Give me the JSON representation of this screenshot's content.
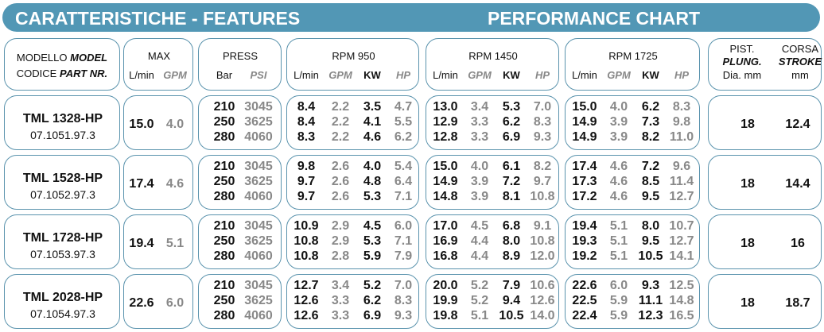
{
  "title_left": "CARATTERISTICHE - FEATURES",
  "title_right": "PERFORMANCE CHART",
  "headers": {
    "model_1": "MODELLO",
    "model_1i": "MODEL",
    "model_2": "CODICE",
    "model_2i": "PART NR.",
    "max": "MAX",
    "lmin": "L/min",
    "gpm": "GPM",
    "press": "PRESS",
    "bar": "Bar",
    "psi": "PSI",
    "rpm950": "RPM 950",
    "rpm1450": "RPM 1450",
    "rpm1725": "RPM 1725",
    "kw": "KW",
    "hp": "HP",
    "pist": "PIST.",
    "plung": "PLUNG.",
    "dia": "Dia. mm",
    "corsa": "CORSA",
    "stroke": "STROKE",
    "mm": "mm"
  },
  "accent": "#5297b5",
  "rows": [
    {
      "model": "TML 1328-HP",
      "code": "07.1051.97.3",
      "max_l": "15.0",
      "max_g": "4.0",
      "plunger": "18",
      "stroke": "12.4",
      "press": [
        [
          "210",
          "3045"
        ],
        [
          "250",
          "3625"
        ],
        [
          "280",
          "4060"
        ]
      ],
      "rpm950": [
        [
          "8.4",
          "2.2",
          "3.5",
          "4.7"
        ],
        [
          "8.4",
          "2.2",
          "4.1",
          "5.5"
        ],
        [
          "8.3",
          "2.2",
          "4.6",
          "6.2"
        ]
      ],
      "rpm1450": [
        [
          "13.0",
          "3.4",
          "5.3",
          "7.0"
        ],
        [
          "12.9",
          "3.3",
          "6.2",
          "8.3"
        ],
        [
          "12.8",
          "3.3",
          "6.9",
          "9.3"
        ]
      ],
      "rpm1725": [
        [
          "15.0",
          "4.0",
          "6.2",
          "8.3"
        ],
        [
          "14.9",
          "3.9",
          "7.3",
          "9.8"
        ],
        [
          "14.9",
          "3.9",
          "8.2",
          "11.0"
        ]
      ]
    },
    {
      "model": "TML 1528-HP",
      "code": "07.1052.97.3",
      "max_l": "17.4",
      "max_g": "4.6",
      "plunger": "18",
      "stroke": "14.4",
      "press": [
        [
          "210",
          "3045"
        ],
        [
          "250",
          "3625"
        ],
        [
          "280",
          "4060"
        ]
      ],
      "rpm950": [
        [
          "9.8",
          "2.6",
          "4.0",
          "5.4"
        ],
        [
          "9.7",
          "2.6",
          "4.8",
          "6.4"
        ],
        [
          "9.7",
          "2.6",
          "5.3",
          "7.1"
        ]
      ],
      "rpm1450": [
        [
          "15.0",
          "4.0",
          "6.1",
          "8.2"
        ],
        [
          "14.9",
          "3.9",
          "7.2",
          "9.7"
        ],
        [
          "14.8",
          "3.9",
          "8.1",
          "10.8"
        ]
      ],
      "rpm1725": [
        [
          "17.4",
          "4.6",
          "7.2",
          "9.6"
        ],
        [
          "17.3",
          "4.6",
          "8.5",
          "11.4"
        ],
        [
          "17.2",
          "4.6",
          "9.5",
          "12.7"
        ]
      ]
    },
    {
      "model": "TML 1728-HP",
      "code": "07.1053.97.3",
      "max_l": "19.4",
      "max_g": "5.1",
      "plunger": "18",
      "stroke": "16",
      "press": [
        [
          "210",
          "3045"
        ],
        [
          "250",
          "3625"
        ],
        [
          "280",
          "4060"
        ]
      ],
      "rpm950": [
        [
          "10.9",
          "2.9",
          "4.5",
          "6.0"
        ],
        [
          "10.8",
          "2.9",
          "5.3",
          "7.1"
        ],
        [
          "10.8",
          "2.8",
          "5.9",
          "7.9"
        ]
      ],
      "rpm1450": [
        [
          "17.0",
          "4.5",
          "6.8",
          "9.1"
        ],
        [
          "16.9",
          "4.4",
          "8.0",
          "10.8"
        ],
        [
          "16.8",
          "4.4",
          "8.9",
          "12.0"
        ]
      ],
      "rpm1725": [
        [
          "19.4",
          "5.1",
          "8.0",
          "10.7"
        ],
        [
          "19.3",
          "5.1",
          "9.5",
          "12.7"
        ],
        [
          "19.2",
          "5.1",
          "10.5",
          "14.1"
        ]
      ]
    },
    {
      "model": "TML 2028-HP",
      "code": "07.1054.97.3",
      "max_l": "22.6",
      "max_g": "6.0",
      "plunger": "18",
      "stroke": "18.7",
      "press": [
        [
          "210",
          "3045"
        ],
        [
          "250",
          "3625"
        ],
        [
          "280",
          "4060"
        ]
      ],
      "rpm950": [
        [
          "12.7",
          "3.4",
          "5.2",
          "7.0"
        ],
        [
          "12.6",
          "3.3",
          "6.2",
          "8.3"
        ],
        [
          "12.6",
          "3.3",
          "6.9",
          "9.3"
        ]
      ],
      "rpm1450": [
        [
          "20.0",
          "5.2",
          "7.9",
          "10.6"
        ],
        [
          "19.9",
          "5.2",
          "9.4",
          "12.6"
        ],
        [
          "19.8",
          "5.1",
          "10.5",
          "14.0"
        ]
      ],
      "rpm1725": [
        [
          "22.6",
          "6.0",
          "9.3",
          "12.5"
        ],
        [
          "22.5",
          "5.9",
          "11.1",
          "14.8"
        ],
        [
          "22.4",
          "5.9",
          "12.3",
          "16.5"
        ]
      ]
    }
  ]
}
